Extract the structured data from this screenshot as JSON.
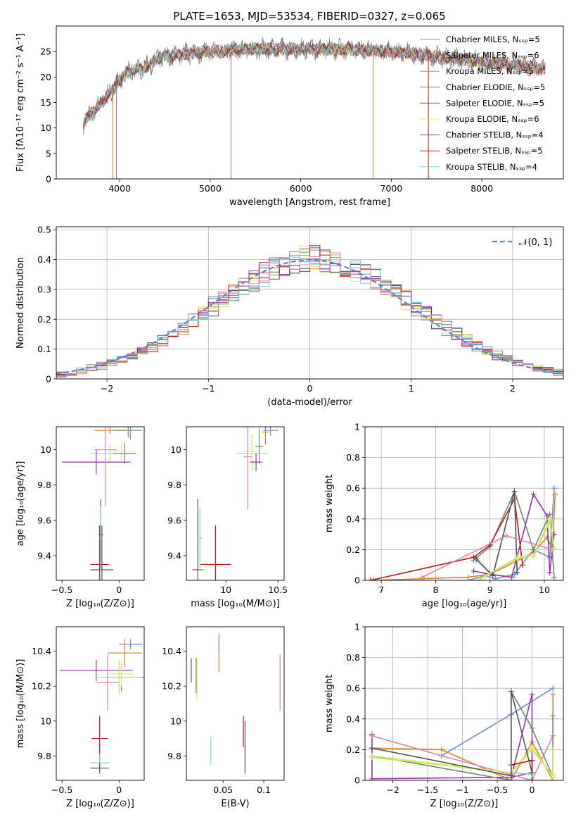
{
  "title": "PLATE=1653, MJD=53534, FIBERID=0327, z=0.065",
  "colors": {
    "Chabrier MILES": "#6a8fd8",
    "Salpeter MILES": "#8e8e8e",
    "Kroupa MILES": "#e0822a",
    "Chabrier ELODIE": "#6d8a6d",
    "Salpeter ELODIE": "#9b30b0",
    "Kroupa ELODIE": "#e8e85a",
    "Chabrier STELIB": "#555555",
    "Salpeter STELIB": "#c01818",
    "Kroupa STELIB": "#7fd6d6",
    "extra": "#e080b8",
    "lime": "#b9e85a"
  },
  "chart_data": [
    {
      "id": "spectrum",
      "type": "line",
      "xlabel": "wavelength [Angstrom, rest frame]",
      "ylabel": "Flux [fλ10⁻¹⁷ erg cm⁻² s⁻¹ A⁻¹]",
      "xlim": [
        3300,
        8900
      ],
      "ylim": [
        0,
        30
      ],
      "xticks": [
        4000,
        5000,
        6000,
        7000,
        8000
      ],
      "yticks": [
        0,
        5,
        10,
        15,
        20,
        25
      ],
      "legend": [
        "Chabrier MILES, Nₛₛₚ=5",
        "Salpeter MILES, Nₛₛₚ=6",
        "Kroupa MILES, Nₛₛₚ=5",
        "Chabrier ELODIE, Nₛₛₚ=5",
        "Salpeter ELODIE, Nₛₛₚ=5",
        "Kroupa ELODIE, Nₛₛₚ=6",
        "Chabrier STELIB, Nₛₛₚ=4",
        "Salpeter STELIB, Nₛₛₚ=5",
        "Kroupa STELIB, Nₛₛₚ=4"
      ],
      "legend_colors": [
        "#6a8fd8",
        "#8e8e8e",
        "#e0822a",
        "#6d8a6d",
        "#9b30b0",
        "#e8e85a",
        "#555555",
        "#c01818",
        "#7fd6d6"
      ],
      "legend_placement": "upper-right",
      "continuum": [
        [
          3600,
          11
        ],
        [
          3700,
          13
        ],
        [
          3800,
          15
        ],
        [
          3900,
          17
        ],
        [
          4000,
          19.5
        ],
        [
          4100,
          21
        ],
        [
          4200,
          21.5
        ],
        [
          4300,
          22
        ],
        [
          4400,
          23.5
        ],
        [
          4500,
          24
        ],
        [
          4700,
          24.5
        ],
        [
          5000,
          25
        ],
        [
          5500,
          25.5
        ],
        [
          6000,
          25.5
        ],
        [
          6500,
          25.5
        ],
        [
          7000,
          25
        ],
        [
          7500,
          24
        ],
        [
          8000,
          23
        ],
        [
          8500,
          22
        ],
        [
          8700,
          21.5
        ]
      ],
      "observed_xrange": [
        3600,
        8700
      ]
    },
    {
      "id": "residuals",
      "type": "line",
      "xlabel": "(data-model)/error",
      "ylabel": "Normed distribution",
      "xlim": [
        -2.5,
        2.5
      ],
      "ylim": [
        0,
        0.51
      ],
      "xticks": [
        -2,
        -1,
        0,
        1,
        2
      ],
      "yticks": [
        0.0,
        0.1,
        0.2,
        0.3,
        0.4,
        0.5
      ],
      "grid": true,
      "legend": [
        "𝒩(0, 1)"
      ],
      "legend_placement": "upper-right",
      "normal_curve": {
        "mean": 0,
        "sigma": 1,
        "color": "#5a86d0"
      },
      "hist_bin_width": 0.1
    },
    {
      "id": "age_vs_Z",
      "type": "scatter",
      "xlabel": "Z [log₁₀(Z/Z⊙)]",
      "ylabel": "age  [log₁₀(age/yr)]",
      "xlim": [
        -0.55,
        0.22
      ],
      "ylim": [
        9.26,
        10.13
      ],
      "xticks": [
        -0.5,
        0.0
      ],
      "yticks": [
        9.4,
        9.6,
        9.8,
        10.0
      ],
      "points": [
        {
          "x": -0.08,
          "y": 10.11,
          "xerr": 0.14,
          "yerr": 0.02,
          "color": "#e0822a"
        },
        {
          "x": 0.08,
          "y": 10.11,
          "xerr": 0.12,
          "yerr": 0.04,
          "color": "#6d8a6d"
        },
        {
          "x": 0.02,
          "y": 9.99,
          "xerr": 0.12,
          "yerr": 0.05,
          "color": "#e8e85a"
        },
        {
          "x": -0.08,
          "y": 9.98,
          "xerr": 0.18,
          "yerr": 0.05,
          "color": "#b9e85a"
        },
        {
          "x": 0.05,
          "y": 9.98,
          "xerr": 0.1,
          "yerr": 0.06,
          "color": "#6d8a6d"
        },
        {
          "x": -0.2,
          "y": 9.93,
          "xerr": 0.3,
          "yerr": 0.07,
          "color": "#9b30b0"
        },
        {
          "x": -0.12,
          "y": 10.0,
          "xerr": 0.1,
          "yerr": 0.32,
          "color": "#e080b8"
        },
        {
          "x": 0.1,
          "y": 10.11,
          "xerr": 0.02,
          "yerr": 0.05,
          "color": "#6a8fd8"
        },
        {
          "x": -0.16,
          "y": 9.52,
          "xerr": 0.02,
          "yerr": 0.2,
          "color": "#555555"
        },
        {
          "x": -0.17,
          "y": 9.35,
          "xerr": 0.08,
          "yerr": 0.22,
          "color": "#c01818"
        },
        {
          "x": -0.15,
          "y": 9.32,
          "xerr": 0.1,
          "yerr": 0.25,
          "color": "#555555"
        },
        {
          "x": -0.16,
          "y": 9.5,
          "xerr": 0.01,
          "yerr": 0.18,
          "color": "#7fd6d6"
        }
      ]
    },
    {
      "id": "age_vs_mass",
      "type": "scatter",
      "xlabel": "mass [log₁₀(M/M⊙)]",
      "ylabel": "",
      "xlim": [
        9.62,
        10.56
      ],
      "ylim": [
        9.26,
        10.13
      ],
      "xticks": [
        10.0,
        10.5
      ],
      "yticks": [
        9.4,
        9.6,
        9.8,
        10.0
      ],
      "points": [
        {
          "x": 10.43,
          "y": 10.11,
          "xerr": 0.07,
          "yerr": 0.03,
          "color": "#6a8fd8"
        },
        {
          "x": 10.38,
          "y": 10.1,
          "xerr": 0.03,
          "yerr": 0.07,
          "color": "#e0822a"
        },
        {
          "x": 10.25,
          "y": 9.98,
          "xerr": 0.15,
          "yerr": 0.1,
          "color": "#b9e85a"
        },
        {
          "x": 10.25,
          "y": 9.99,
          "xerr": 0.08,
          "yerr": 0.1,
          "color": "#e8e85a"
        },
        {
          "x": 10.29,
          "y": 9.93,
          "xerr": 0.06,
          "yerr": 0.05,
          "color": "#9b30b0"
        },
        {
          "x": 10.21,
          "y": 9.96,
          "xerr": 0.04,
          "yerr": 0.3,
          "color": "#e080b8"
        },
        {
          "x": 10.32,
          "y": 10.02,
          "xerr": 0.04,
          "yerr": 0.1,
          "color": "#6d8a6d"
        },
        {
          "x": 9.9,
          "y": 9.35,
          "xerr": 0.15,
          "yerr": 0.22,
          "color": "#c01818"
        },
        {
          "x": 9.73,
          "y": 9.32,
          "xerr": 0.05,
          "yerr": 0.4,
          "color": "#555555"
        },
        {
          "x": 9.75,
          "y": 9.5,
          "xerr": 0.02,
          "yerr": 0.17,
          "color": "#7fd6d6"
        }
      ]
    },
    {
      "id": "mass_weight_vs_age",
      "type": "line",
      "xlabel": "age  [log₁₀(age/yr)]",
      "ylabel": "mass weight",
      "xlim": [
        6.7,
        10.35
      ],
      "ylim": [
        0,
        1.0
      ],
      "xticks": [
        7,
        8,
        9,
        10
      ],
      "yticks": [
        0.0,
        0.2,
        0.4,
        0.6,
        0.8,
        1.0
      ],
      "grid": true,
      "series": [
        {
          "color": "#6a8fd8",
          "x": [
            8.6,
            8.9,
            9.1,
            9.45,
            9.8,
            10.1,
            10.18
          ],
          "y": [
            0.0,
            0.03,
            0.01,
            0.04,
            0.2,
            0.15,
            0.6
          ]
        },
        {
          "color": "#e0822a",
          "x": [
            6.85,
            8.6,
            9.0,
            9.8,
            10.05,
            10.15,
            10.2
          ],
          "y": [
            0.0,
            0.02,
            0.04,
            0.18,
            0.28,
            0.2,
            0.56
          ]
        },
        {
          "color": "#9b30b0",
          "x": [
            8.7,
            9.0,
            9.4,
            9.8,
            10.05,
            10.1,
            10.18
          ],
          "y": [
            0.06,
            0.04,
            0.02,
            0.56,
            0.42,
            0.05,
            0.3
          ]
        },
        {
          "color": "#6d8a6d",
          "x": [
            8.7,
            9.0,
            9.45,
            9.8,
            10.1,
            10.18
          ],
          "y": [
            0.13,
            0.22,
            0.58,
            0.2,
            0.43,
            0.02
          ]
        },
        {
          "color": "#c01818",
          "x": [
            6.8,
            8.7,
            9.0,
            9.45,
            9.6
          ],
          "y": [
            0.0,
            0.15,
            0.23,
            0.53,
            0.1
          ]
        },
        {
          "color": "#7fd6d6",
          "x": [
            8.75,
            9.05,
            9.45,
            9.5
          ],
          "y": [
            0.13,
            0.03,
            0.58,
            0.05
          ]
        },
        {
          "color": "#555555",
          "x": [
            8.75,
            9.05,
            9.45,
            9.5
          ],
          "y": [
            0.14,
            0.03,
            0.58,
            0.05
          ]
        },
        {
          "color": "#e080b8",
          "x": [
            7.75,
            9.3,
            10.15
          ],
          "y": [
            0.02,
            0.29,
            0.2
          ]
        },
        {
          "color": "#e8e85a",
          "x": [
            8.8,
            9.5,
            9.8,
            10.1,
            10.18
          ],
          "y": [
            0.0,
            0.15,
            0.16,
            0.4,
            0.21
          ]
        },
        {
          "color": "#b9e85a",
          "x": [
            8.8,
            9.5,
            9.8,
            10.1,
            10.18
          ],
          "y": [
            0.01,
            0.14,
            0.16,
            0.38,
            0.2
          ]
        }
      ]
    },
    {
      "id": "mass_vs_Z",
      "type": "scatter",
      "xlabel": "Z [log₁₀(Z/Z⊙)]",
      "ylabel": "mass [log₁₀(M/M⊙)]",
      "xlim": [
        -0.55,
        0.22
      ],
      "ylim": [
        9.66,
        10.54
      ],
      "xticks": [
        -0.5,
        0.0
      ],
      "yticks": [
        9.8,
        10.0,
        10.2,
        10.4
      ],
      "points": [
        {
          "x": 0.1,
          "y": 10.44,
          "xerr": 0.1,
          "yerr": 0.03,
          "color": "#6a8fd8"
        },
        {
          "x": 0.05,
          "y": 10.39,
          "xerr": 0.15,
          "yerr": 0.08,
          "color": "#e0822a"
        },
        {
          "x": -0.2,
          "y": 10.29,
          "xerr": 0.32,
          "yerr": 0.06,
          "color": "#9b30b0"
        },
        {
          "x": 0.02,
          "y": 10.25,
          "xerr": 0.2,
          "yerr": 0.08,
          "color": "#6d8a6d"
        },
        {
          "x": 0.0,
          "y": 10.25,
          "xerr": 0.2,
          "yerr": 0.1,
          "color": "#b9e85a"
        },
        {
          "x": -0.1,
          "y": 10.22,
          "xerr": 0.1,
          "yerr": 0.16,
          "color": "#e080b8"
        },
        {
          "x": 0.02,
          "y": 10.27,
          "xerr": 0.1,
          "yerr": 0.07,
          "color": "#e8e85a"
        },
        {
          "x": -0.17,
          "y": 9.9,
          "xerr": 0.07,
          "yerr": 0.13,
          "color": "#c01818"
        },
        {
          "x": -0.17,
          "y": 9.76,
          "xerr": 0.08,
          "yerr": 0.05,
          "color": "#7fd6d6"
        },
        {
          "x": -0.17,
          "y": 9.73,
          "xerr": 0.08,
          "yerr": 0.03,
          "color": "#555555"
        }
      ]
    },
    {
      "id": "mass_vs_ebv",
      "type": "scatter",
      "xlabel": "E(B-V)",
      "ylabel": "",
      "xlim": [
        0.005,
        0.125
      ],
      "ylim": [
        9.66,
        10.54
      ],
      "xticks": [
        0.05,
        0.1
      ],
      "yticks": [
        9.8,
        10.0,
        10.2,
        10.4
      ],
      "points": [
        {
          "x": 0.045,
          "y": 10.39,
          "xerr": 0,
          "yerr": 0.11,
          "color": "#e0822a"
        },
        {
          "x": 0.045,
          "y": 10.43,
          "xerr": 0,
          "yerr": 0.04,
          "color": "#6a8fd8"
        },
        {
          "x": 0.011,
          "y": 10.29,
          "xerr": 0,
          "yerr": 0.07,
          "color": "#9b30b0"
        },
        {
          "x": 0.017,
          "y": 10.26,
          "xerr": 0,
          "yerr": 0.1,
          "color": "#6d8a6d"
        },
        {
          "x": 0.018,
          "y": 10.24,
          "xerr": 0,
          "yerr": 0.13,
          "color": "#e8e85a"
        },
        {
          "x": 0.12,
          "y": 10.22,
          "xerr": 0,
          "yerr": 0.16,
          "color": "#e080b8"
        },
        {
          "x": 0.075,
          "y": 9.94,
          "xerr": 0,
          "yerr": 0.09,
          "color": "#c01818"
        },
        {
          "x": 0.077,
          "y": 9.85,
          "xerr": 0,
          "yerr": 0.15,
          "color": "#555555"
        },
        {
          "x": 0.035,
          "y": 9.83,
          "xerr": 0,
          "yerr": 0.08,
          "color": "#7fd6d6"
        }
      ]
    },
    {
      "id": "mass_weight_vs_Z",
      "type": "line",
      "xlabel": "Z [log₁₀(Z/Z⊙)]",
      "ylabel": "mass weight",
      "xlim": [
        -2.4,
        0.45
      ],
      "ylim": [
        0,
        1.0
      ],
      "xticks": [
        -2.0,
        -1.5,
        -1.0,
        -0.5,
        0.0
      ],
      "yticks": [
        0.0,
        0.2,
        0.4,
        0.6,
        0.8,
        1.0
      ],
      "grid": true,
      "series": [
        {
          "color": "#6a8fd8",
          "x": [
            -1.3,
            -0.3,
            0.3
          ],
          "y": [
            0.16,
            0.43,
            0.6
          ]
        },
        {
          "color": "#e0822a",
          "x": [
            -2.3,
            -1.3,
            -0.3,
            0.0,
            0.3,
            0.3
          ],
          "y": [
            0.21,
            0.2,
            0.0,
            0.25,
            0.0,
            0.56
          ]
        },
        {
          "color": "#9b30b0",
          "x": [
            -2.3,
            -2.3,
            -0.3,
            0.0,
            0.0,
            -0.3
          ],
          "y": [
            0.3,
            0.01,
            0.02,
            0.56,
            0.05,
            0.02
          ]
        },
        {
          "color": "#e080b8",
          "x": [
            -2.3,
            -1.3,
            0.0,
            0.3
          ],
          "y": [
            0.29,
            0.16,
            0.0,
            0.29
          ]
        },
        {
          "color": "#6d8a6d",
          "x": [
            -2.3,
            -0.3,
            -0.3,
            0.0,
            0.3,
            0.3
          ],
          "y": [
            0.16,
            0.0,
            0.58,
            0.34,
            0.02,
            0.42
          ]
        },
        {
          "color": "#b9e85a",
          "x": [
            -2.3,
            -0.3,
            0.0,
            0.3,
            0.3
          ],
          "y": [
            0.15,
            0.05,
            0.2,
            0.03,
            0.2
          ]
        },
        {
          "color": "#e8e85a",
          "x": [
            -2.3,
            -0.3,
            0.0,
            0.3
          ],
          "y": [
            0.16,
            0.05,
            0.22,
            0.02
          ]
        },
        {
          "color": "#c01818",
          "x": [
            -0.3,
            0.0,
            0.0
          ],
          "y": [
            0.1,
            0.13,
            0.0
          ]
        },
        {
          "color": "#7fd6d6",
          "x": [
            -0.3,
            -0.3,
            0.0
          ],
          "y": [
            0.58,
            0.05,
            0.04
          ]
        },
        {
          "color": "#555555",
          "x": [
            -2.3,
            -0.3,
            -0.3,
            0.0
          ],
          "y": [
            0.21,
            0.03,
            0.58,
            0.05
          ]
        }
      ]
    }
  ]
}
